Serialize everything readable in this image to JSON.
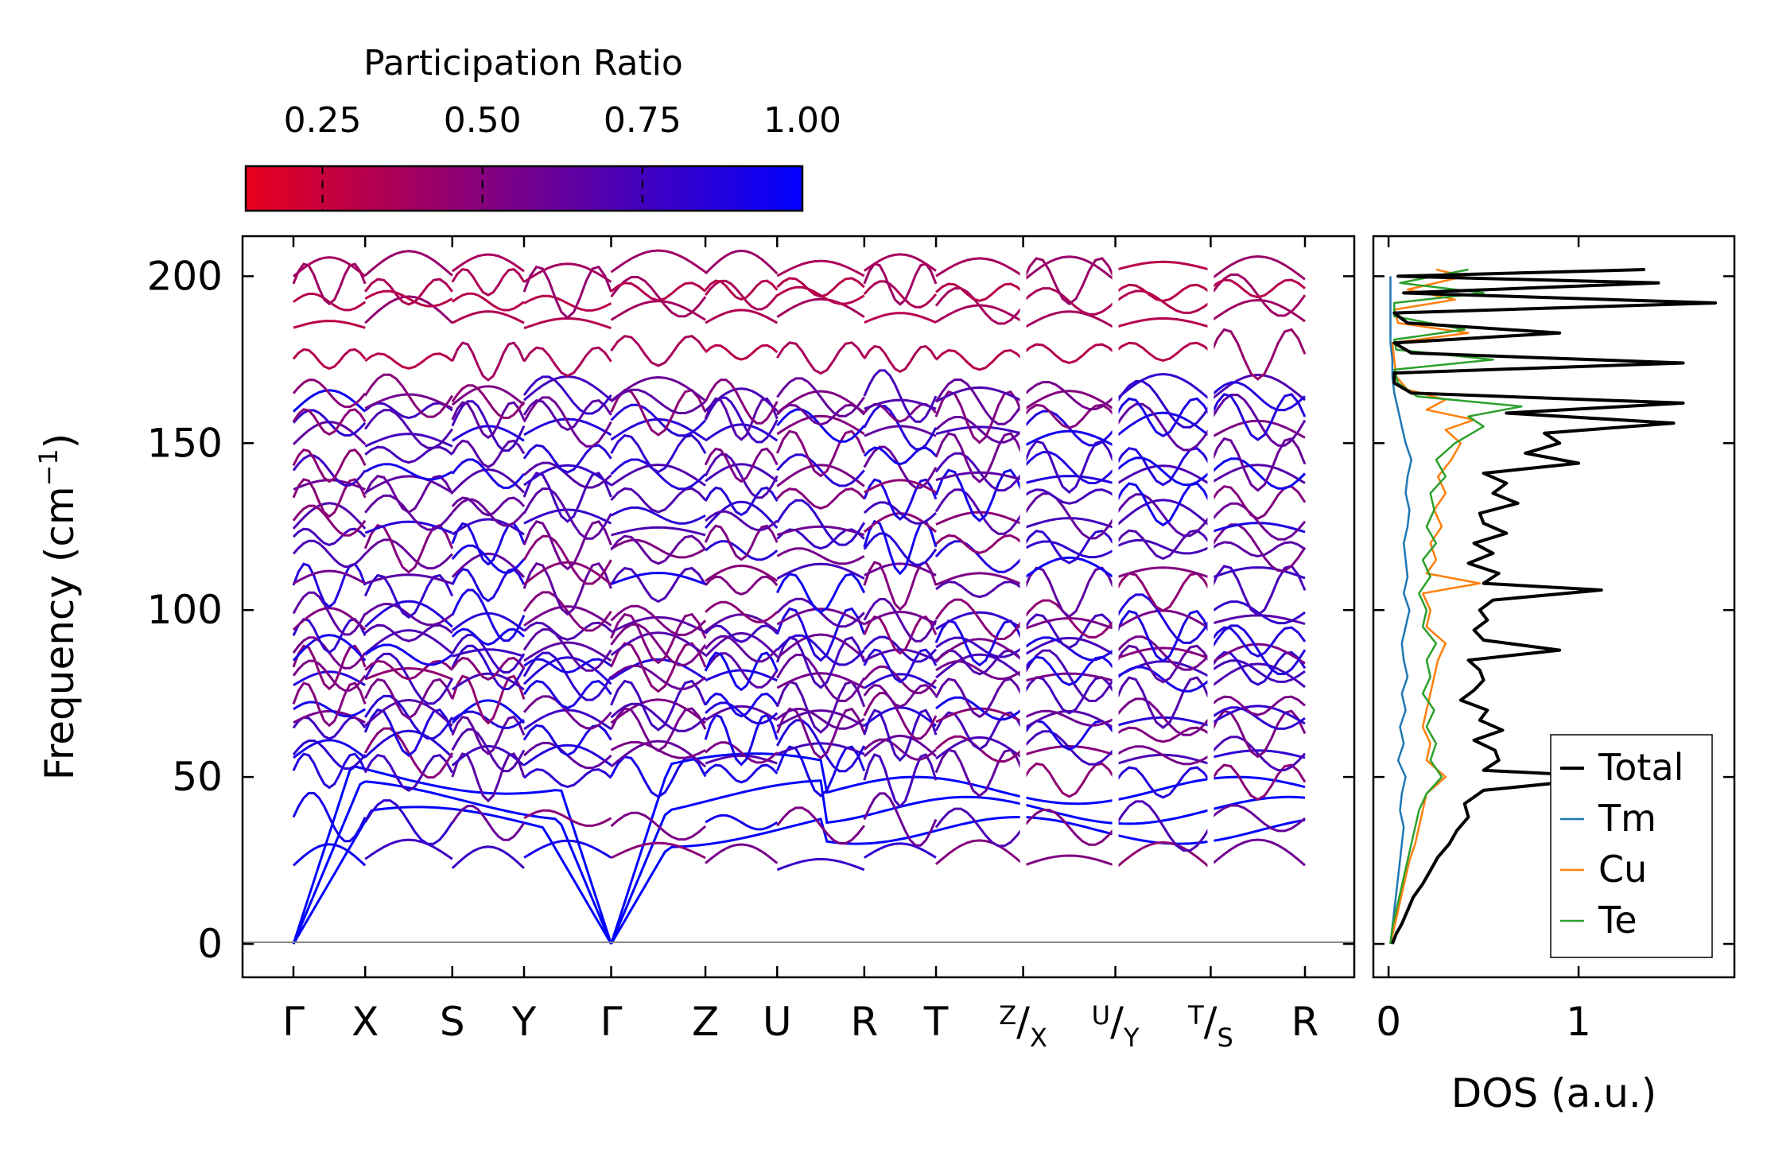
{
  "chart_data": [
    {
      "type": "line",
      "title": "",
      "ylabel": "Frequency (cm",
      "ylabel_sup": "−1",
      "ylabel_close": ")",
      "ylim": [
        -10,
        212
      ],
      "yticks": [
        "0",
        "50",
        "100",
        "150",
        "200"
      ],
      "ytick_values": [
        0,
        50,
        100,
        150,
        200
      ],
      "kpath": [
        {
          "label": "Γ",
          "dist": 0.0
        },
        {
          "label": "X",
          "dist": 0.7
        },
        {
          "label": "S",
          "dist": 1.55
        },
        {
          "label": "Y",
          "dist": 2.25
        },
        {
          "label": "Γ",
          "dist": 3.1
        },
        {
          "label": "Z",
          "dist": 4.02
        },
        {
          "label": "U",
          "dist": 4.72
        },
        {
          "label": "R",
          "dist": 5.57
        },
        {
          "label": "T",
          "dist": 6.27
        },
        {
          "label": "X",
          "top_label": "Z",
          "dist": 7.12
        },
        {
          "label": "Y",
          "top_label": "U",
          "dist": 8.02
        },
        {
          "label": "S",
          "top_label": "T",
          "dist": 8.95
        },
        {
          "label": "R",
          "dist": 9.87
        }
      ],
      "path_breaks": [
        7.12,
        8.02,
        8.95
      ],
      "colorbar": {
        "label": "Participation Ratio",
        "ticks": [
          "0.25",
          "0.50",
          "0.75",
          "1.00"
        ],
        "tick_values": [
          0.25,
          0.5,
          0.75,
          1.0
        ],
        "range": [
          0.13,
          1.0
        ],
        "colors": [
          "#e8001c",
          "#0000ff"
        ]
      },
      "branch_frequencies_at_gamma": [
        0,
        0,
        0,
        24,
        36,
        50,
        55,
        58,
        63,
        66,
        69,
        73,
        78,
        81,
        83,
        86,
        88,
        92,
        95,
        98,
        106,
        109,
        117,
        120,
        124,
        128,
        133,
        137,
        141,
        145,
        151,
        155,
        158,
        161,
        163,
        176,
        186,
        193,
        197,
        200
      ],
      "acoustic_slopes": [
        50,
        70,
        90
      ],
      "band_count": 40
    },
    {
      "type": "line",
      "xlabel": "DOS (a.u.)",
      "xticks": [
        "0",
        "1"
      ],
      "xtick_values": [
        0,
        1
      ],
      "xlim": [
        -0.08,
        1.82
      ],
      "ylim": [
        -10,
        212
      ],
      "series": [
        {
          "name": "Total",
          "color": "#000000",
          "freq": [
            0,
            3,
            6,
            10,
            14,
            18,
            22,
            26,
            30,
            34,
            38,
            42,
            46,
            50,
            52,
            55,
            58,
            61,
            64,
            67,
            70,
            73,
            76,
            79,
            82,
            85,
            88,
            91,
            94,
            97,
            100,
            103,
            106,
            108,
            111,
            114,
            117,
            120,
            123,
            126,
            129,
            132,
            135,
            138,
            141,
            144,
            147,
            150,
            153,
            156,
            159,
            162,
            165,
            168,
            171,
            174,
            177,
            180,
            183,
            186,
            189,
            192,
            195,
            198,
            200,
            202
          ],
          "dos": [
            0.02,
            0.04,
            0.07,
            0.1,
            0.13,
            0.18,
            0.22,
            0.26,
            0.32,
            0.36,
            0.42,
            0.4,
            0.5,
            1.2,
            0.5,
            0.58,
            0.56,
            0.45,
            0.6,
            0.48,
            0.52,
            0.38,
            0.45,
            0.5,
            0.48,
            0.42,
            0.9,
            0.5,
            0.45,
            0.52,
            0.48,
            0.55,
            1.12,
            0.5,
            0.58,
            0.42,
            0.55,
            0.45,
            0.62,
            0.5,
            0.48,
            0.68,
            0.55,
            0.62,
            0.5,
            1.0,
            0.72,
            0.9,
            0.82,
            1.5,
            0.62,
            1.55,
            0.12,
            0.03,
            0.03,
            1.55,
            0.12,
            0.03,
            0.9,
            0.1,
            0.03,
            1.72,
            0.08,
            1.42,
            0.05,
            1.35
          ]
        },
        {
          "name": "Tm",
          "color": "#1f77b4",
          "freq": [
            0,
            5,
            10,
            15,
            20,
            25,
            30,
            35,
            40,
            45,
            50,
            55,
            60,
            65,
            70,
            75,
            80,
            85,
            90,
            95,
            100,
            105,
            110,
            115,
            120,
            125,
            130,
            135,
            140,
            145,
            150,
            155,
            160,
            165,
            170,
            175,
            180,
            185,
            190,
            195,
            200
          ],
          "dos": [
            0.01,
            0.02,
            0.03,
            0.04,
            0.05,
            0.06,
            0.07,
            0.08,
            0.06,
            0.07,
            0.09,
            0.05,
            0.08,
            0.06,
            0.09,
            0.07,
            0.1,
            0.08,
            0.07,
            0.09,
            0.11,
            0.08,
            0.1,
            0.09,
            0.08,
            0.1,
            0.11,
            0.09,
            0.1,
            0.12,
            0.09,
            0.07,
            0.05,
            0.03,
            0.02,
            0.02,
            0.01,
            0.01,
            0.01,
            0.01,
            0.01
          ]
        },
        {
          "name": "Cu",
          "color": "#ff7f0e",
          "freq": [
            0,
            5,
            10,
            15,
            20,
            25,
            30,
            35,
            40,
            45,
            50,
            55,
            60,
            65,
            70,
            75,
            80,
            85,
            90,
            95,
            100,
            105,
            108,
            111,
            115,
            120,
            125,
            130,
            135,
            140,
            145,
            150,
            154,
            157,
            160,
            163,
            166,
            170,
            175,
            180,
            183,
            186,
            190,
            193,
            196,
            200,
            202
          ],
          "dos": [
            0.01,
            0.03,
            0.05,
            0.07,
            0.09,
            0.11,
            0.14,
            0.16,
            0.18,
            0.2,
            0.3,
            0.2,
            0.22,
            0.18,
            0.2,
            0.22,
            0.24,
            0.26,
            0.3,
            0.2,
            0.22,
            0.18,
            0.48,
            0.2,
            0.25,
            0.22,
            0.28,
            0.24,
            0.3,
            0.26,
            0.33,
            0.38,
            0.3,
            0.45,
            0.2,
            0.3,
            0.1,
            0.04,
            0.03,
            0.02,
            0.42,
            0.05,
            0.03,
            0.35,
            0.1,
            0.4,
            0.25
          ]
        },
        {
          "name": "Te",
          "color": "#2ca02c",
          "freq": [
            0,
            5,
            10,
            15,
            20,
            25,
            30,
            35,
            40,
            45,
            50,
            55,
            60,
            65,
            70,
            75,
            80,
            85,
            90,
            95,
            100,
            105,
            110,
            115,
            120,
            125,
            130,
            135,
            140,
            145,
            150,
            155,
            158,
            161,
            164,
            168,
            172,
            175,
            178,
            181,
            184,
            188,
            192,
            195,
            198,
            202
          ],
          "dos": [
            0.01,
            0.02,
            0.04,
            0.06,
            0.08,
            0.1,
            0.12,
            0.14,
            0.16,
            0.2,
            0.28,
            0.22,
            0.25,
            0.2,
            0.24,
            0.18,
            0.22,
            0.2,
            0.25,
            0.18,
            0.2,
            0.16,
            0.22,
            0.18,
            0.25,
            0.2,
            0.24,
            0.22,
            0.3,
            0.25,
            0.35,
            0.5,
            0.42,
            0.7,
            0.15,
            0.05,
            0.03,
            0.55,
            0.04,
            0.03,
            0.4,
            0.03,
            0.03,
            0.5,
            0.06,
            0.42
          ]
        }
      ]
    }
  ]
}
